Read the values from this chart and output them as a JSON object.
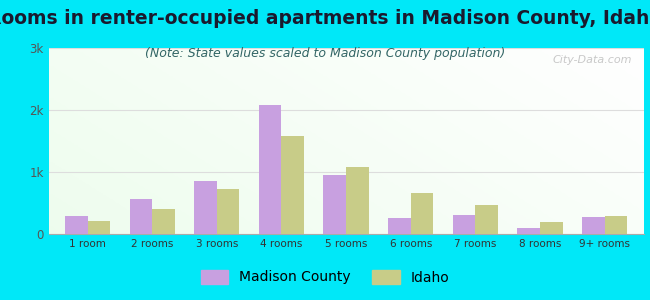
{
  "title": "Rooms in renter-occupied apartments in Madison County, Idaho",
  "subtitle": "(Note: State values scaled to Madison County population)",
  "categories": [
    "1 room",
    "2 rooms",
    "3 rooms",
    "4 rooms",
    "5 rooms",
    "6 rooms",
    "7 rooms",
    "8 rooms",
    "9+ rooms"
  ],
  "madison_values": [
    290,
    560,
    860,
    2080,
    950,
    260,
    310,
    95,
    270
  ],
  "idaho_values": [
    210,
    410,
    720,
    1580,
    1080,
    660,
    460,
    200,
    285
  ],
  "madison_color": "#c8a0e0",
  "idaho_color": "#c8cc88",
  "background_outer": "#00e8f8",
  "ylim": [
    0,
    3000
  ],
  "yticks": [
    0,
    1000,
    2000,
    3000
  ],
  "ytick_labels": [
    "0",
    "1k",
    "2k",
    "3k"
  ],
  "title_fontsize": 13.5,
  "subtitle_fontsize": 9,
  "legend_fontsize": 10,
  "watermark": "City-Data.com"
}
